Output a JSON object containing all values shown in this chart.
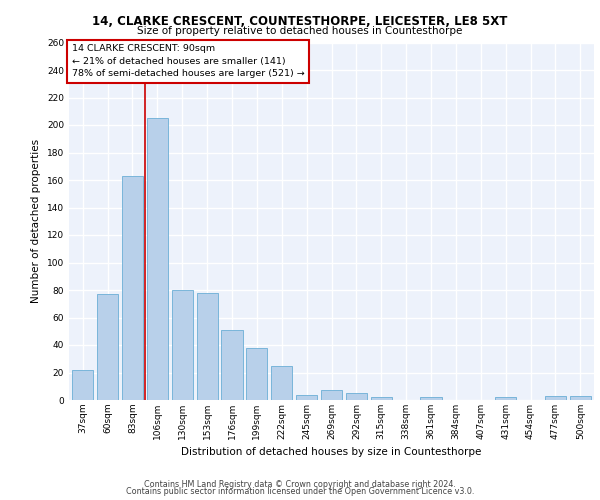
{
  "title": "14, CLARKE CRESCENT, COUNTESTHORPE, LEICESTER, LE8 5XT",
  "subtitle": "Size of property relative to detached houses in Countesthorpe",
  "xlabel": "Distribution of detached houses by size in Countesthorpe",
  "ylabel": "Number of detached properties",
  "footer1": "Contains HM Land Registry data © Crown copyright and database right 2024.",
  "footer2": "Contains public sector information licensed under the Open Government Licence v3.0.",
  "bar_labels": [
    "37sqm",
    "60sqm",
    "83sqm",
    "106sqm",
    "130sqm",
    "153sqm",
    "176sqm",
    "199sqm",
    "222sqm",
    "245sqm",
    "269sqm",
    "292sqm",
    "315sqm",
    "338sqm",
    "361sqm",
    "384sqm",
    "407sqm",
    "431sqm",
    "454sqm",
    "477sqm",
    "500sqm"
  ],
  "bar_values": [
    22,
    77,
    163,
    205,
    80,
    78,
    51,
    38,
    25,
    4,
    7,
    5,
    2,
    0,
    2,
    0,
    0,
    2,
    0,
    3,
    3
  ],
  "bar_color": "#b8d0ea",
  "bar_edgecolor": "#6baed6",
  "property_label": "14 CLARKE CRESCENT: 90sqm",
  "pct_smaller": 21,
  "n_smaller": 141,
  "pct_larger_semi": 78,
  "n_larger_semi": 521,
  "vline_index": 2.5,
  "ylim": [
    0,
    260
  ],
  "yticks": [
    0,
    20,
    40,
    60,
    80,
    100,
    120,
    140,
    160,
    180,
    200,
    220,
    240,
    260
  ],
  "background_color": "#edf2fb",
  "grid_color": "#ffffff",
  "annotation_box_facecolor": "#ffffff",
  "annotation_box_edgecolor": "#cc0000",
  "vline_color": "#cc0000",
  "title_fontsize": 8.5,
  "subtitle_fontsize": 7.5,
  "ylabel_fontsize": 7.5,
  "xlabel_fontsize": 7.5,
  "tick_fontsize": 6.5,
  "ann_fontsize": 6.8,
  "footer_fontsize": 5.8
}
